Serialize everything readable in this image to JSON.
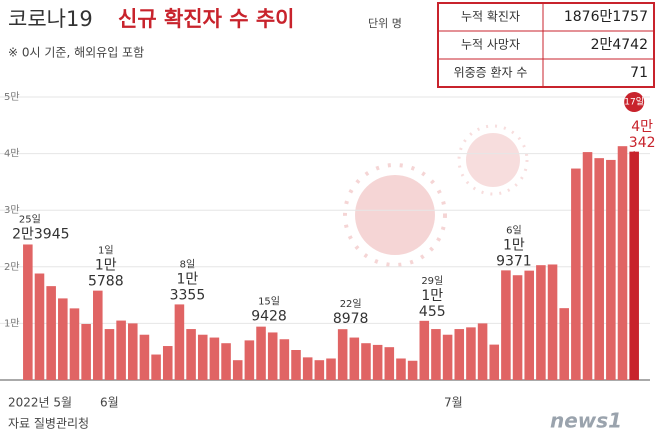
{
  "chart_data": {
    "type": "bar",
    "title_prefix": "코로나19",
    "title": "신규 확진자 수 추이",
    "unit": "단위 명",
    "subtitle": "※ 0시 기준, 해외유입 포함",
    "source": "자료 질병관리청",
    "logo": "news1",
    "summary": [
      [
        "누적 확진자",
        "1876만1757"
      ],
      [
        "누적 사망자",
        "2만4742"
      ],
      [
        "위중증 환자 수",
        "71"
      ]
    ],
    "month_labels": [
      "2022년 5월",
      "6월",
      "7월"
    ],
    "categories": [
      "25일",
      null,
      null,
      null,
      null,
      null,
      "1일",
      null,
      null,
      null,
      null,
      null,
      null,
      "8일",
      null,
      null,
      null,
      null,
      null,
      null,
      "15일",
      null,
      null,
      null,
      null,
      null,
      null,
      "22일",
      null,
      null,
      null,
      null,
      null,
      null,
      "29일",
      null,
      null,
      null,
      null,
      null,
      null,
      "6일",
      null,
      null,
      null,
      null,
      null,
      null,
      null,
      null,
      null,
      null,
      "17일"
    ],
    "values": [
      23945,
      18816,
      16584,
      14417,
      12654,
      9896,
      15788,
      9000,
      10500,
      10000,
      8000,
      4500,
      6000,
      13355,
      9000,
      8000,
      7500,
      6500,
      3500,
      7000,
      9428,
      8400,
      7200,
      5300,
      4000,
      3500,
      3800,
      8978,
      7500,
      6500,
      6200,
      5800,
      3800,
      3400,
      10455,
      9000,
      8000,
      9000,
      9300,
      10000,
      6252,
      19371,
      18511,
      19323,
      20286,
      20410,
      12693,
      37360,
      40266,
      39196,
      38882,
      41310,
      40342
    ],
    "value_labels": [
      "2만3945",
      null,
      null,
      null,
      null,
      null,
      "1만5788",
      null,
      null,
      null,
      null,
      null,
      null,
      "1만3355",
      null,
      null,
      null,
      null,
      null,
      null,
      "9428",
      null,
      null,
      null,
      null,
      null,
      null,
      "8978",
      null,
      null,
      null,
      null,
      null,
      null,
      "1만455",
      null,
      null,
      null,
      null,
      null,
      null,
      "1만9371",
      null,
      null,
      null,
      null,
      null,
      null,
      null,
      null,
      null,
      null,
      "4만342"
    ],
    "color": "#e06464",
    "highlight_color": "#c8232c",
    "ylim": [
      0,
      50000
    ],
    "yticks": [
      {
        "value": 10000,
        "label": "1만"
      },
      {
        "value": 20000,
        "label": "2만"
      },
      {
        "value": 30000,
        "label": "3만"
      },
      {
        "value": 40000,
        "label": "4만"
      },
      {
        "value": 50000,
        "label": "5만"
      }
    ],
    "grid": true
  }
}
